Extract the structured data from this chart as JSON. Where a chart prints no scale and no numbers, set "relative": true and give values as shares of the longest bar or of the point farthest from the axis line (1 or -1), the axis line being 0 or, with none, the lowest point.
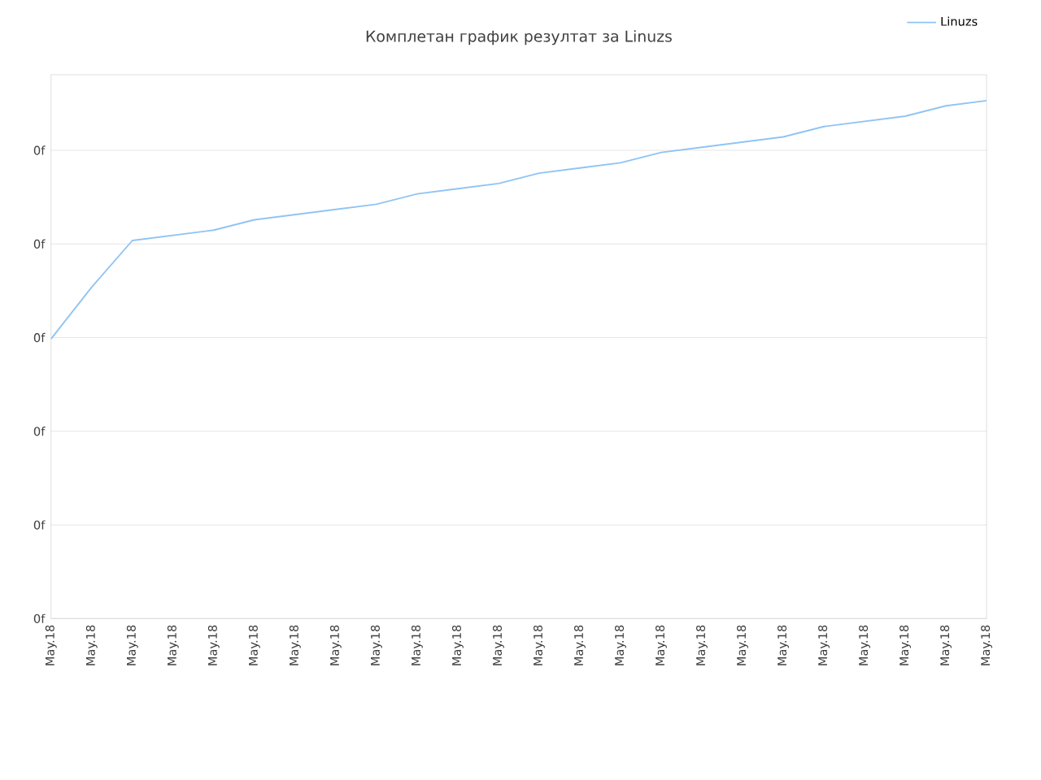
{
  "chart_data": {
    "type": "line",
    "title": "Комплетан график резултат за Linuzs",
    "relative": true,
    "annotations": [
      "0f",
      "0f",
      "0f",
      "0f",
      "0f",
      "0f"
    ],
    "categories": [
      "May.18",
      "May.18",
      "May.18",
      "May.18",
      "May.18",
      "May.18",
      "May.18",
      "May.18",
      "May.18",
      "May.18",
      "May.18",
      "May.18",
      "May.18",
      "May.18",
      "May.18",
      "May.18",
      "May.18",
      "May.18",
      "May.18",
      "May.18",
      "May.18",
      "May.18",
      "May.18",
      "May.18"
    ],
    "grid": "y",
    "legend": "top right",
    "series": [
      {
        "name": "Linuzs",
        "color": "#90c4f4",
        "values": [
          0.54,
          0.64,
          0.73,
          0.74,
          0.75,
          0.77,
          0.78,
          0.79,
          0.8,
          0.82,
          0.83,
          0.84,
          0.86,
          0.87,
          0.88,
          0.9,
          0.91,
          0.92,
          0.93,
          0.95,
          0.96,
          0.97,
          0.99,
          1
        ]
      }
    ]
  }
}
